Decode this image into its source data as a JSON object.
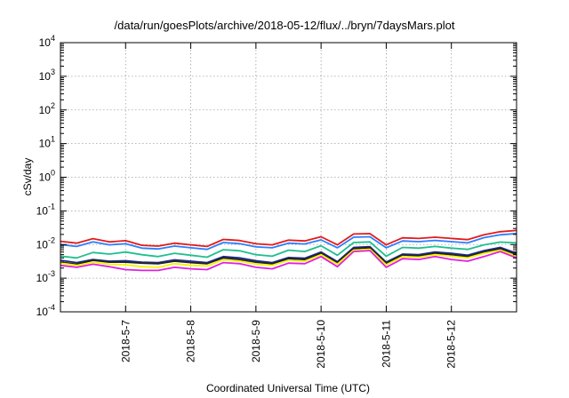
{
  "chart_data": {
    "type": "line",
    "title": "/data/run/goesPlots/archive/2018-05-12/flux/../bryn/7daysMars.plot",
    "xlabel": "Coordinated Universal Time (UTC)",
    "ylabel": "cSv/day",
    "xlim": [
      "2018-05-06 00:00",
      "2018-05-13 00:00"
    ],
    "ylim": [
      0.0001,
      10000
    ],
    "yscale": "log",
    "grid": true,
    "x_ticks": [
      "2018-5-7",
      "2018-5-8",
      "2018-5-9",
      "2018-5-10",
      "2018-5-11",
      "2018-5-12"
    ],
    "y_ticks": [
      {
        "base": "10",
        "exp": "-4",
        "value": 0.0001
      },
      {
        "base": "10",
        "exp": "-3",
        "value": 0.001
      },
      {
        "base": "10",
        "exp": "-2",
        "value": 0.01
      },
      {
        "base": "10",
        "exp": "-1",
        "value": 0.1
      },
      {
        "base": "10",
        "exp": "0",
        "value": 1
      },
      {
        "base": "10",
        "exp": "1",
        "value": 10
      },
      {
        "base": "10",
        "exp": "2",
        "value": 100
      },
      {
        "base": "10",
        "exp": "3",
        "value": 1000
      },
      {
        "base": "10",
        "exp": "4",
        "value": 10000
      }
    ],
    "x": [
      "2018-05-06 00:00",
      "2018-05-06 06:00",
      "2018-05-06 12:00",
      "2018-05-06 18:00",
      "2018-05-07 00:00",
      "2018-05-07 06:00",
      "2018-05-07 12:00",
      "2018-05-07 18:00",
      "2018-05-08 00:00",
      "2018-05-08 06:00",
      "2018-05-08 12:00",
      "2018-05-08 18:00",
      "2018-05-09 00:00",
      "2018-05-09 06:00",
      "2018-05-09 12:00",
      "2018-05-09 18:00",
      "2018-05-10 00:00",
      "2018-05-10 06:00",
      "2018-05-10 12:00",
      "2018-05-10 18:00",
      "2018-05-11 00:00",
      "2018-05-11 06:00",
      "2018-05-11 12:00",
      "2018-05-11 18:00",
      "2018-05-12 00:00",
      "2018-05-12 06:00",
      "2018-05-12 12:00",
      "2018-05-12 18:00",
      "2018-05-13 00:00"
    ],
    "series": [
      {
        "color": "#e41a1c",
        "values": [
          0.0125,
          0.011,
          0.015,
          0.012,
          0.013,
          0.0095,
          0.009,
          0.011,
          0.0098,
          0.0088,
          0.0142,
          0.0132,
          0.0105,
          0.0098,
          0.0135,
          0.0128,
          0.017,
          0.0098,
          0.0205,
          0.021,
          0.0098,
          0.0158,
          0.0152,
          0.0165,
          0.0152,
          0.014,
          0.0195,
          0.024,
          0.0262
        ]
      },
      {
        "color": "#2a7fff",
        "values": [
          0.01,
          0.0088,
          0.012,
          0.0098,
          0.0105,
          0.0078,
          0.0074,
          0.009,
          0.008,
          0.0072,
          0.0115,
          0.0106,
          0.0085,
          0.008,
          0.011,
          0.0104,
          0.0138,
          0.008,
          0.0165,
          0.017,
          0.008,
          0.0128,
          0.0122,
          0.0133,
          0.0122,
          0.0112,
          0.016,
          0.0195,
          0.0212
        ]
      },
      {
        "color": "#1fbf8f",
        "values": [
          0.0045,
          0.004,
          0.0058,
          0.0052,
          0.006,
          0.005,
          0.0044,
          0.0055,
          0.0048,
          0.0042,
          0.007,
          0.0065,
          0.005,
          0.0045,
          0.0068,
          0.0062,
          0.0092,
          0.0048,
          0.0115,
          0.012,
          0.0045,
          0.0082,
          0.0078,
          0.0088,
          0.0078,
          0.0072,
          0.0098,
          0.0118,
          0.0112
        ]
      },
      {
        "color": "#1a2a8a",
        "values": [
          0.0034,
          0.0029,
          0.0036,
          0.0032,
          0.0033,
          0.003,
          0.0029,
          0.0035,
          0.0032,
          0.0029,
          0.0044,
          0.004,
          0.0033,
          0.0029,
          0.0041,
          0.0039,
          0.006,
          0.0031,
          0.0082,
          0.0086,
          0.003,
          0.0052,
          0.005,
          0.006,
          0.0055,
          0.0048,
          0.0066,
          0.0082,
          0.0055
        ]
      },
      {
        "color": "#222222",
        "values": [
          0.003,
          0.0026,
          0.0034,
          0.003,
          0.003,
          0.0028,
          0.0027,
          0.0032,
          0.0029,
          0.0027,
          0.004,
          0.0036,
          0.003,
          0.0027,
          0.0038,
          0.0036,
          0.0055,
          0.0029,
          0.0075,
          0.008,
          0.0028,
          0.0048,
          0.0046,
          0.0055,
          0.005,
          0.0044,
          0.006,
          0.0075,
          0.005
        ]
      },
      {
        "color": "#f5f500",
        "values": [
          0.0028,
          0.0024,
          0.003,
          0.0026,
          0.0025,
          0.0022,
          0.0021,
          0.0027,
          0.0024,
          0.0023,
          0.0035,
          0.0032,
          0.0026,
          0.0024,
          0.0034,
          0.0032,
          0.005,
          0.0026,
          0.0068,
          0.0072,
          0.0025,
          0.0044,
          0.0042,
          0.005,
          0.0045,
          0.004,
          0.0055,
          0.0068,
          0.0045
        ]
      },
      {
        "color": "#e020e0",
        "values": [
          0.0024,
          0.0021,
          0.0026,
          0.0022,
          0.0018,
          0.0017,
          0.0017,
          0.0021,
          0.0019,
          0.0018,
          0.0029,
          0.0027,
          0.0021,
          0.0019,
          0.0028,
          0.0027,
          0.0044,
          0.0022,
          0.0062,
          0.0066,
          0.0021,
          0.0038,
          0.0036,
          0.0044,
          0.0036,
          0.0032,
          0.0044,
          0.0062,
          0.004
        ]
      }
    ]
  }
}
